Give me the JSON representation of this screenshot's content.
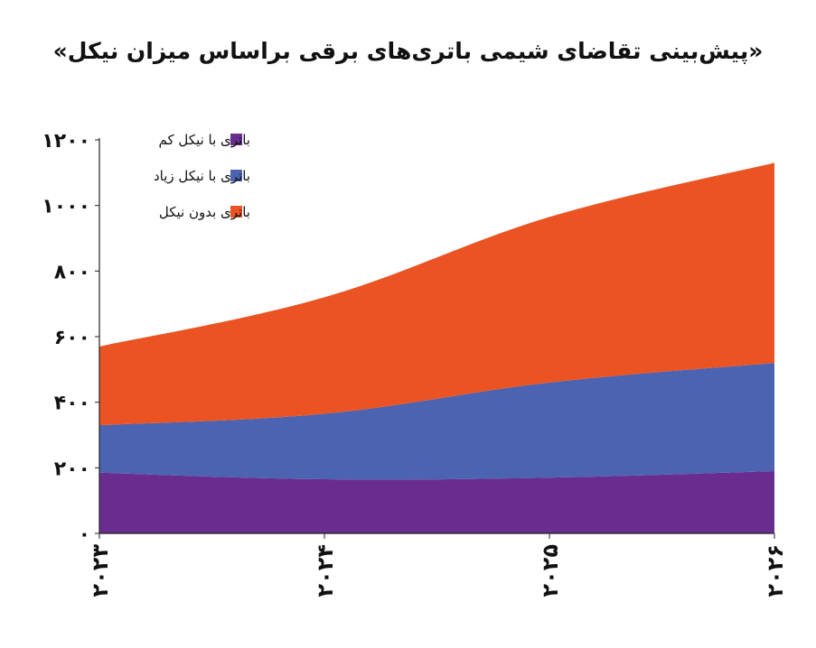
{
  "chart_data": {
    "type": "area",
    "stacked": true,
    "title": "«پیش‌بینی تقاضای شیمی باتری‌های برقی براساس میزان نیکل»",
    "categories": [
      "۲۰۲۳",
      "۲۰۲۴",
      "۲۰۲۵",
      "۲۰۲۶"
    ],
    "ylim": [
      0,
      1200
    ],
    "yticks": [
      0,
      200,
      400,
      600,
      800,
      1000,
      1200
    ],
    "ytick_labels": [
      "۰",
      "۲۰۰",
      "۴۰۰",
      "۶۰۰",
      "۸۰۰",
      "۱۰۰۰",
      "۱۲۰۰"
    ],
    "grid": false,
    "legend_position": "top-left",
    "series": [
      {
        "name": "باتری با نیکل کم",
        "color": "#6a2d8f",
        "values": [
          185,
          165,
          170,
          190
        ]
      },
      {
        "name": "باتری با نیکل زیاد",
        "color": "#4b63b0",
        "values": [
          145,
          200,
          290,
          330
        ]
      },
      {
        "name": "باتری بدون نیکل",
        "color": "#ec5322",
        "values": [
          240,
          355,
          505,
          610
        ]
      }
    ]
  }
}
